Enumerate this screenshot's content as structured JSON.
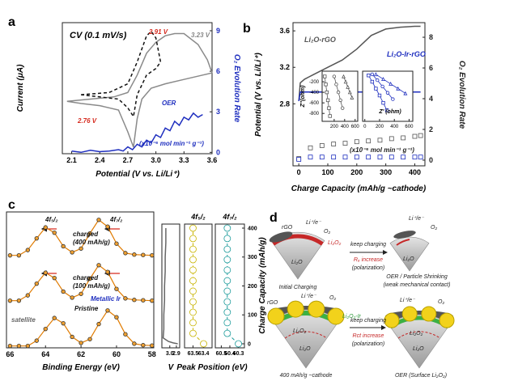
{
  "chart_data": [
    {
      "panel_label": "a",
      "type": "line",
      "title": "CV (0.1 mV/s)",
      "xlabel": "Potential (V vs. Li/Li⁺)",
      "ylabel": "Current (μA)",
      "y2label": "O₂ Evolution Rate",
      "xlim": [
        2.0,
        3.6
      ],
      "xticks": [
        2.1,
        2.4,
        2.7,
        {
          "value": 3,
          "label": "3.0"
        },
        3.3,
        3.6
      ],
      "ylim": [
        -3,
        3
      ],
      "y2lim": [
        -0.1,
        9.6
      ],
      "y2ticks": [
        0,
        3,
        6,
        9
      ],
      "series": [
        {
          "color": "#8a8a8a",
          "x": [
            2.05,
            2.3,
            2.55,
            2.7,
            2.8,
            2.9,
            3.0,
            3.1,
            3.2,
            3.3,
            3.45,
            3.55,
            3.6,
            3.5,
            3.3,
            3.1,
            2.95,
            2.85,
            2.8,
            2.76,
            2.7,
            2.6,
            2.4,
            2.2,
            2.05
          ],
          "values": [
            -0.6,
            -0.5,
            -0.4,
            -0.2,
            0.6,
            1.6,
            2.1,
            2.4,
            2.5,
            2.5,
            2.0,
            1.3,
            0.7,
            0.6,
            0.4,
            0.2,
            0.0,
            -0.5,
            -1.4,
            -2.7,
            -2.0,
            -1.0,
            -0.8,
            -0.7,
            -0.6
          ]
        },
        {
          "color": "#111111",
          "dashed": true,
          "x": [
            2.2,
            2.5,
            2.7,
            2.8,
            2.9,
            2.95,
            3.0,
            3.05,
            3.0,
            2.9,
            2.8,
            2.76,
            2.7,
            2.6,
            2.4,
            2.2
          ],
          "values": [
            -0.3,
            -0.2,
            0.2,
            1.2,
            2.4,
            2.6,
            2.3,
            1.2,
            0.9,
            0.6,
            -0.3,
            -1.3,
            -0.9,
            -0.5,
            -0.4,
            -0.3
          ]
        },
        {
          "color": "#1f2fbf",
          "axis": "y2",
          "x": [
            2.1,
            2.2,
            2.3,
            2.4,
            2.5,
            2.6,
            2.65,
            2.7,
            2.75,
            2.8,
            2.85,
            2.9,
            2.95,
            3.0,
            3.05,
            3.1,
            3.15,
            3.2,
            3.25,
            3.3,
            3.35,
            3.4,
            3.45,
            3.5
          ],
          "values": [
            0.1,
            0,
            0.15,
            0.05,
            0.1,
            0.2,
            0.1,
            0.4,
            0.2,
            0.6,
            0.4,
            0.9,
            0.7,
            1.3,
            1.1,
            1.8,
            1.6,
            2.3,
            2.0,
            2.6,
            2.4,
            2.9,
            2.6,
            2.8
          ]
        }
      ],
      "annotations": [
        "2.91 V",
        "3.23 V",
        "2.76 V",
        "OER",
        "(x10⁻⁶ mol min⁻¹ g⁻¹)"
      ]
    },
    {
      "panel_label": "b",
      "type": "line",
      "xlabel": "Charge Capacity (mAh/g ~cathode)",
      "ylabel": "Potential (V vs. Li/Li⁺)",
      "y2label": "O₂ Evolution Rate",
      "xlim": [
        -20,
        435
      ],
      "xticks": [
        0,
        100,
        200,
        300,
        400
      ],
      "ylim": [
        2.12,
        3.69
      ],
      "yticks": [
        2.8,
        3.2,
        3.6
      ],
      "y2lim": [
        -0.37,
        8.95
      ],
      "y2ticks": [
        0,
        2,
        4,
        6,
        8
      ],
      "series": [
        {
          "name": "Li₂O-rGO",
          "color": "#555555",
          "x": [
            0,
            5,
            20,
            50,
            100,
            150,
            200,
            250,
            300,
            350,
            400,
            420
          ],
          "values": [
            2.83,
            3.03,
            3.07,
            3.12,
            3.2,
            3.28,
            3.4,
            3.55,
            3.62,
            3.64,
            3.65,
            3.65
          ]
        },
        {
          "name": "Li₂O-Ir-rGO",
          "color": "#1f2fbf",
          "x": [
            0,
            5,
            20,
            100,
            200,
            300,
            400,
            420
          ],
          "values": [
            2.83,
            2.93,
            2.93,
            2.93,
            2.93,
            2.93,
            2.93,
            2.93
          ]
        },
        {
          "color": "#555555",
          "axis": "y2",
          "marker": "square",
          "line": false,
          "x": [
            0,
            40,
            80,
            120,
            160,
            200,
            240,
            280,
            320,
            360,
            400,
            420
          ],
          "values": [
            0.1,
            0.8,
            0.95,
            1.05,
            1.1,
            1.2,
            1.25,
            1.3,
            1.4,
            1.45,
            1.55,
            1.6
          ]
        },
        {
          "color": "#1f2fbf",
          "axis": "y2",
          "marker": "square",
          "line": false,
          "x": [
            0,
            40,
            80,
            120,
            160,
            200,
            240,
            280,
            320,
            360,
            400,
            420
          ],
          "values": [
            0.05,
            0.2,
            0.2,
            0.2,
            0.2,
            0.2,
            0.2,
            0.2,
            0.2,
            0.2,
            0.2,
            0.2
          ]
        }
      ],
      "annotations": [
        "(x10⁻⁶ mol min⁻¹ g⁻¹)"
      ]
    },
    {
      "type": "scatter",
      "ylabel": "Z''(ohm)",
      "xlim": [
        -30,
        650
      ],
      "xticks": [
        200,
        400,
        600
      ],
      "ylim": [
        -950,
        0
      ],
      "yticks": [
        -800,
        -600,
        -400,
        -200
      ],
      "series": [
        {
          "color": "#555555",
          "marker": "square",
          "x": [
            20,
            40,
            60,
            80,
            100,
            120
          ],
          "values": [
            -100,
            -250,
            -400,
            -550,
            -700,
            -850
          ]
        },
        {
          "color": "#555555",
          "marker": "circle",
          "x": [
            200,
            240,
            280,
            320,
            360
          ],
          "values": [
            -100,
            -250,
            -400,
            -550,
            -700
          ]
        },
        {
          "color": "#555555",
          "marker": "triangle",
          "x": [
            380,
            420,
            460,
            500,
            540
          ],
          "values": [
            -100,
            -200,
            -300,
            -400,
            -500
          ]
        }
      ]
    },
    {
      "type": "scatter",
      "xlabel": "Z' (ohm)",
      "xlim": [
        -30,
        650
      ],
      "xticks": [
        0,
        200,
        400,
        600
      ],
      "ylim": [
        -950,
        0
      ],
      "series": [
        {
          "color": "#1f2fbf",
          "marker": "square",
          "x": [
            50,
            100,
            150,
            200,
            250,
            300
          ],
          "values": [
            -80,
            -200,
            -330,
            -460,
            -600,
            -740
          ]
        },
        {
          "color": "#1f2fbf",
          "marker": "circle",
          "x": [
            100,
            170,
            240,
            310,
            380
          ],
          "values": [
            -60,
            -170,
            -290,
            -410,
            -530
          ]
        },
        {
          "color": "#1f2fbf",
          "marker": "triangle",
          "x": [
            150,
            250,
            350,
            450,
            550
          ],
          "values": [
            -60,
            -150,
            -240,
            -330,
            -420
          ]
        }
      ]
    },
    {
      "panel_label": "c",
      "type": "line",
      "xlabel": "Binding Energy (eV)",
      "xlim": [
        66.2,
        57.9
      ],
      "xticks": [
        66,
        64,
        62,
        60,
        58
      ],
      "ylim": [
        0,
        3.6
      ],
      "series": [
        {
          "color": "#e07b00",
          "marker": "circle",
          "x": [
            66,
            65.5,
            65,
            64.5,
            64,
            63.5,
            63,
            62.5,
            62,
            61.5,
            61,
            60.5,
            60,
            59.5,
            59,
            58.5,
            58
          ],
          "values": [
            2.45,
            2.45,
            2.59,
            2.9,
            3.19,
            3.05,
            2.69,
            2.53,
            2.63,
            3.03,
            3.39,
            3.21,
            2.76,
            2.51,
            2.47,
            2.46,
            2.45
          ]
        },
        {
          "color": "#e07b00",
          "marker": "circle",
          "x": [
            66,
            65.5,
            65,
            64.5,
            64,
            63.5,
            63,
            62.5,
            62,
            61.5,
            61,
            60.5,
            60,
            59.5,
            59,
            58.5,
            58
          ],
          "values": [
            1.25,
            1.25,
            1.39,
            1.7,
            1.99,
            1.85,
            1.49,
            1.33,
            1.43,
            1.83,
            2.19,
            2.01,
            1.56,
            1.31,
            1.27,
            1.26,
            1.25
          ]
        },
        {
          "color": "#e07b00",
          "marker": "circle",
          "x": [
            66,
            65.5,
            65,
            64.5,
            64,
            63.5,
            63,
            62.5,
            62,
            61.5,
            61,
            60.5,
            60,
            59.5,
            59,
            58.5,
            58
          ],
          "values": [
            0.05,
            0.05,
            0.05,
            0.19,
            0.5,
            0.79,
            0.65,
            0.29,
            0.13,
            0.23,
            0.63,
            0.99,
            0.81,
            0.36,
            0.11,
            0.07,
            0.06
          ]
        }
      ],
      "annotations": [
        "4f₅/₂",
        "4f₇/₂",
        "charged",
        "(400 mAh/g)",
        "charged",
        "(100 mAh/g)",
        "Metallic Ir",
        "satellite",
        "Pristine"
      ]
    },
    {
      "type": "line",
      "xlabel": "V",
      "xlim": [
        3.12,
        2.85
      ],
      "xticks": [
        {
          "value": 3,
          "label": "3.0"
        },
        2.9
      ],
      "ylim": [
        -14,
        414
      ],
      "series": [
        {
          "color": "#666666",
          "x": [
            3.06,
            3.06,
            3.07,
            3.07,
            3.08,
            3.08,
            3.09,
            3.09,
            3.1,
            3.02,
            2.95,
            2.88
          ],
          "values": [
            400,
            350,
            300,
            250,
            200,
            150,
            100,
            50,
            20,
            8,
            3,
            0
          ]
        }
      ]
    },
    {
      "type": "scatter",
      "title": "4f₅/₂",
      "xlim": [
        63.58,
        63.32
      ],
      "xticks": [
        63.5,
        63.4
      ],
      "ylim": [
        -14,
        414
      ],
      "series": [
        {
          "color": "#c8b400",
          "marker": "circle",
          "dashed": true,
          "x": [
            63.4,
            63.5,
            63.5,
            63.5,
            63.5,
            63.5,
            63.5,
            63.5,
            63.5,
            63.5,
            63.5,
            63.5
          ],
          "values": [
            0,
            36,
            73,
            109,
            145,
            182,
            218,
            255,
            291,
            327,
            364,
            400
          ]
        }
      ]
    },
    {
      "type": "scatter",
      "title": "4f₇/₂",
      "xlabel": "Peak Position (eV)",
      "ylabel": "Charge Capacity (mAh/g)",
      "xlim": [
        60.57,
        60.23
      ],
      "xticks": [
        60.5,
        60.4,
        60.3
      ],
      "ylim": [
        -14,
        414
      ],
      "yticks": [
        0,
        100,
        200,
        300,
        400
      ],
      "series": [
        {
          "color": "#1a9a9a",
          "marker": "circle",
          "dashed": true,
          "x": [
            60.3,
            60.43,
            60.43,
            60.43,
            60.43,
            60.43,
            60.43,
            60.43,
            60.43,
            60.43,
            60.43,
            60.43
          ],
          "values": [
            0,
            36,
            73,
            109,
            145,
            182,
            218,
            255,
            291,
            327,
            364,
            400
          ]
        }
      ]
    }
  ],
  "diagram": {
    "texts": [
      "d",
      "rGO",
      "Li⁺/e⁻",
      "O₂",
      "Li₂O₂",
      "Li₂O",
      "keep charging",
      "Rₑ increase",
      "(polarization)",
      "Initial Charging",
      "Li⁺/e⁻",
      "O₂",
      "Li₂O",
      "OER / Particle Shrinking",
      "(weak mechanical contact)",
      "rGO",
      "Li⁺/e⁻",
      "O₂",
      "Li₂O₂-Ir",
      "Li₂O₂",
      "Li₂O",
      "keep charging",
      "Rct increase",
      "(polarization)",
      "400 mAh/g ~cathode",
      "Li⁺/e⁻",
      "O₂",
      "Li₂O₂",
      "Li₂O",
      "OER (Surface Li₂O₂)"
    ]
  }
}
